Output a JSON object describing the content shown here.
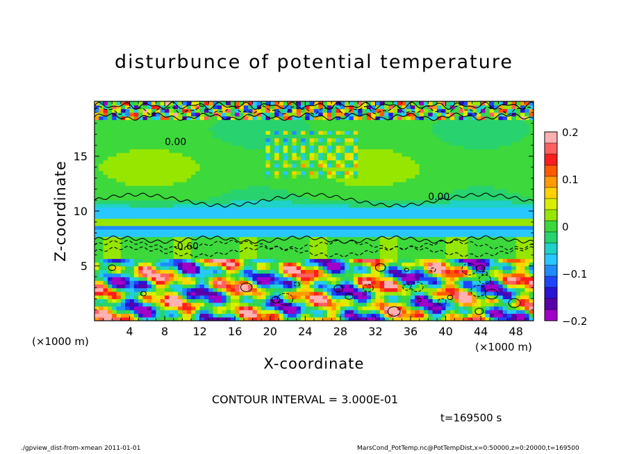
{
  "title": "disturbunce of potential temperature",
  "xlabel": "X-coordinate",
  "ylabel": "Z-coordinate",
  "x_unit_left": "(×1000 m)",
  "x_unit_right": "(×1000 m)",
  "contour_interval": "CONTOUR INTERVAL = 3.000E-01",
  "time_label": "t=169500 s",
  "footer_left": "./gpview_dist-from-xmean   2011-01-01",
  "footer_right": "MarsCond_PotTemp.nc@PotTempDist,x=0:50000,z=0:20000,t=169500",
  "chart_data": {
    "type": "heatmap",
    "title": "disturbunce of potential temperature",
    "xlabel": "X-coordinate",
    "ylabel": "Z-coordinate",
    "xlim": [
      0,
      50
    ],
    "ylim": [
      0,
      20
    ],
    "x_ticks": [
      4,
      8,
      12,
      16,
      20,
      24,
      28,
      32,
      36,
      40,
      44,
      48
    ],
    "y_ticks": [
      5,
      10,
      15
    ],
    "colorbar": {
      "range": [
        -0.2,
        0.2
      ],
      "ticks": [
        0.2,
        0.1,
        0,
        -0.1,
        -0.2
      ],
      "tick_labels": [
        "0.2",
        "0.1",
        "0",
        "−0.1",
        "−0.2"
      ],
      "colors": [
        "#ffb0b0",
        "#ff6060",
        "#ff1e1e",
        "#ff5a00",
        "#ff9a00",
        "#ffd200",
        "#d8f000",
        "#96e600",
        "#3cd83c",
        "#28d26e",
        "#1ed2c8",
        "#28c8ff",
        "#1e8cff",
        "#1e46ff",
        "#2814d2",
        "#5a00aa",
        "#a000c8"
      ]
    },
    "layers": [
      {
        "z_from": 18.2,
        "z_to": 20,
        "field": "turbulent, strongly varying"
      },
      {
        "z_from": 10.2,
        "z_to": 18.2,
        "value": 0.0
      },
      {
        "z_from": 7.6,
        "z_to": 10.2,
        "field": "negative band, minimum near -0.1"
      },
      {
        "z_from": 5.5,
        "z_to": 7.6,
        "field": "near zero"
      },
      {
        "z_from": 0,
        "z_to": 5.5,
        "field": "mixed, -0.2 to 0.2"
      }
    ],
    "contour_labels": [
      {
        "text": "0.00",
        "x": 8,
        "z": 16
      },
      {
        "text": "-0.60",
        "x": 9,
        "z": 6.5
      },
      {
        "text": "0.00",
        "x": 38,
        "z": 11
      }
    ],
    "grid": false
  }
}
